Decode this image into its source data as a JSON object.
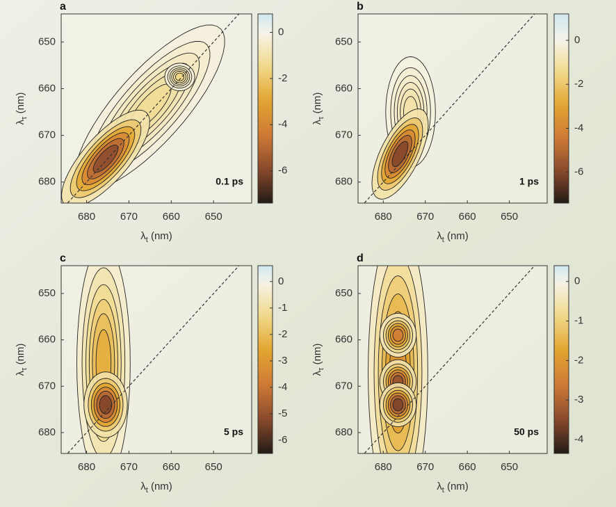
{
  "chart_data": [
    {
      "type": "contour",
      "panel": "a",
      "annotation": "0.1 ps",
      "xlabel": {
        "symbol": "λ",
        "subscript": "t",
        "unit": " (nm)"
      },
      "ylabel": {
        "symbol": "λ",
        "subscript": "τ",
        "unit": " (nm)"
      },
      "xlim": [
        686,
        641
      ],
      "xticks": [
        680,
        670,
        660,
        650
      ],
      "ylim": [
        644,
        684.5
      ],
      "yticks": [
        650,
        660,
        670,
        680
      ],
      "clim": [
        -7.4,
        0.8
      ],
      "cticks": [
        0,
        -2,
        -4,
        -6
      ],
      "colormap": {
        "negative": [
          "#f6f4ea",
          "#f1d98a",
          "#e2a531",
          "#cf7a36",
          "#8a4a2c",
          "#231b16"
        ],
        "positive": "#cfe8ef"
      },
      "features": [
        {
          "x": 665,
          "y": 664,
          "sx": 12,
          "sy": 4,
          "tilt": 45,
          "value": -1.5
        },
        {
          "x": 658,
          "y": 657.5,
          "sx": 1.8,
          "sy": 1.5,
          "tilt": 0,
          "value": -1.8
        },
        {
          "x": 675.5,
          "y": 675,
          "sx": 7,
          "sy": 2.6,
          "tilt": 45,
          "value": -6.8
        }
      ]
    },
    {
      "type": "contour",
      "panel": "b",
      "annotation": "1 ps",
      "xlabel": {
        "symbol": "λ",
        "subscript": "t",
        "unit": " (nm)"
      },
      "ylabel": {
        "symbol": "λ",
        "subscript": "τ",
        "unit": " (nm)"
      },
      "xlim": [
        686,
        641
      ],
      "xticks": [
        680,
        670,
        660,
        650
      ],
      "ylim": [
        644,
        684.5
      ],
      "yticks": [
        650,
        660,
        670,
        680
      ],
      "clim": [
        -7.4,
        1.2
      ],
      "cticks": [
        0,
        -2,
        -4,
        -6
      ],
      "colormap": {
        "negative": [
          "#f6f4ea",
          "#f1d98a",
          "#e2a531",
          "#cf7a36",
          "#8a4a2c",
          "#231b16"
        ],
        "positive": "#cfe8ef"
      },
      "features": [
        {
          "x": 673.5,
          "y": 665,
          "sx": 3,
          "sy": 6,
          "tilt": 0,
          "value": -1.2
        },
        {
          "x": 676,
          "y": 674,
          "sx": 5.5,
          "sy": 2.3,
          "tilt": 60,
          "value": -7
        }
      ]
    },
    {
      "type": "contour",
      "panel": "c",
      "annotation": "5 ps",
      "xlabel": {
        "symbol": "λ",
        "subscript": "t",
        "unit": " (nm)"
      },
      "ylabel": {
        "symbol": "λ",
        "subscript": "τ",
        "unit": " (nm)"
      },
      "xlim": [
        686,
        641
      ],
      "xticks": [
        680,
        670,
        660,
        650
      ],
      "ylim": [
        644,
        684.5
      ],
      "yticks": [
        650,
        660,
        670,
        680
      ],
      "clim": [
        -6.5,
        0.6
      ],
      "cticks": [
        0,
        -1,
        -2,
        -3,
        -4,
        -5,
        -6
      ],
      "colormap": {
        "negative": [
          "#f6f4ea",
          "#f1d98a",
          "#e2a531",
          "#cf7a36",
          "#8a4a2c",
          "#231b16"
        ],
        "positive": "#cfe8ef"
      },
      "features": [
        {
          "x": 676,
          "y": 665,
          "sx": 3.2,
          "sy": 13,
          "tilt": 0,
          "value": -2.8
        },
        {
          "x": 675.5,
          "y": 674,
          "sx": 2.6,
          "sy": 3.6,
          "tilt": 0,
          "value": -6.2
        }
      ]
    },
    {
      "type": "contour",
      "panel": "d",
      "annotation": "50 ps",
      "xlabel": {
        "symbol": "λ",
        "subscript": "t",
        "unit": " (nm)"
      },
      "ylabel": {
        "symbol": "λ",
        "subscript": "τ",
        "unit": " (nm)"
      },
      "xlim": [
        686,
        641
      ],
      "xticks": [
        680,
        670,
        660,
        650
      ],
      "ylim": [
        644,
        684.5
      ],
      "yticks": [
        650,
        660,
        670,
        680
      ],
      "clim": [
        -4.35,
        0.4
      ],
      "cticks": [
        0,
        -1,
        -2,
        -3,
        -4
      ],
      "colormap": {
        "negative": [
          "#f6f4ea",
          "#f1d98a",
          "#e2a531",
          "#cf7a36",
          "#8a4a2c",
          "#231b16"
        ],
        "positive": "#cfe8ef"
      },
      "features": [
        {
          "x": 676.5,
          "y": 667,
          "sx": 3.6,
          "sy": 16,
          "tilt": 0,
          "value": -2.5
        },
        {
          "x": 676.5,
          "y": 659,
          "sx": 2.2,
          "sy": 2.4,
          "tilt": 0,
          "value": -3
        },
        {
          "x": 676.5,
          "y": 669,
          "sx": 2.2,
          "sy": 2.4,
          "tilt": 0,
          "value": -3.9
        },
        {
          "x": 676.5,
          "y": 674,
          "sx": 2.2,
          "sy": 2.4,
          "tilt": 0,
          "value": -4.2
        }
      ]
    }
  ]
}
